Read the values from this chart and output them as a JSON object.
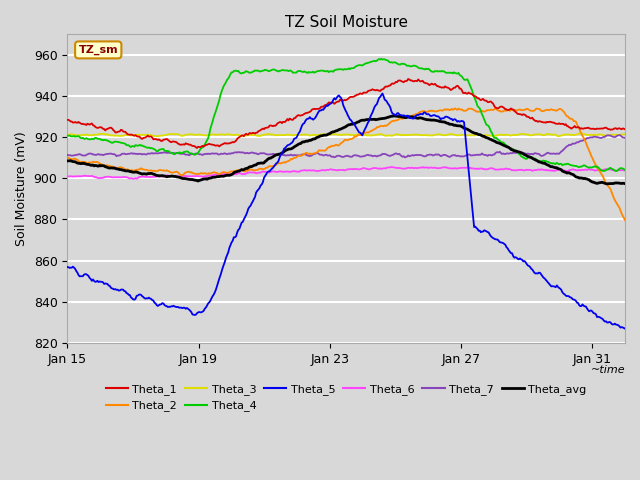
{
  "title": "TZ Soil Moisture",
  "xlabel": "~time",
  "ylabel": "Soil Moisture (mV)",
  "ylim": [
    820,
    970
  ],
  "xlim": [
    0,
    17
  ],
  "xtick_positions": [
    0,
    4,
    8,
    12,
    16
  ],
  "xtick_labels": [
    "Jan 15",
    "Jan 19",
    "Jan 23",
    "Jan 27",
    "Jan 31"
  ],
  "ytick_positions": [
    820,
    840,
    860,
    880,
    900,
    920,
    940,
    960
  ],
  "background_color": "#d8d8d8",
  "plot_bg_color": "#d8d8d8",
  "grid_color": "#ffffff",
  "legend_label": "TZ_sm",
  "series": {
    "Theta_1": {
      "color": "#dd0000",
      "lw": 1.3
    },
    "Theta_2": {
      "color": "#ff8800",
      "lw": 1.3
    },
    "Theta_3": {
      "color": "#dddd00",
      "lw": 1.3
    },
    "Theta_4": {
      "color": "#00cc00",
      "lw": 1.3
    },
    "Theta_5": {
      "color": "#0000ee",
      "lw": 1.3
    },
    "Theta_6": {
      "color": "#ff44ff",
      "lw": 1.3
    },
    "Theta_7": {
      "color": "#8844bb",
      "lw": 1.3
    },
    "Theta_avg": {
      "color": "#000000",
      "lw": 2.0
    }
  }
}
